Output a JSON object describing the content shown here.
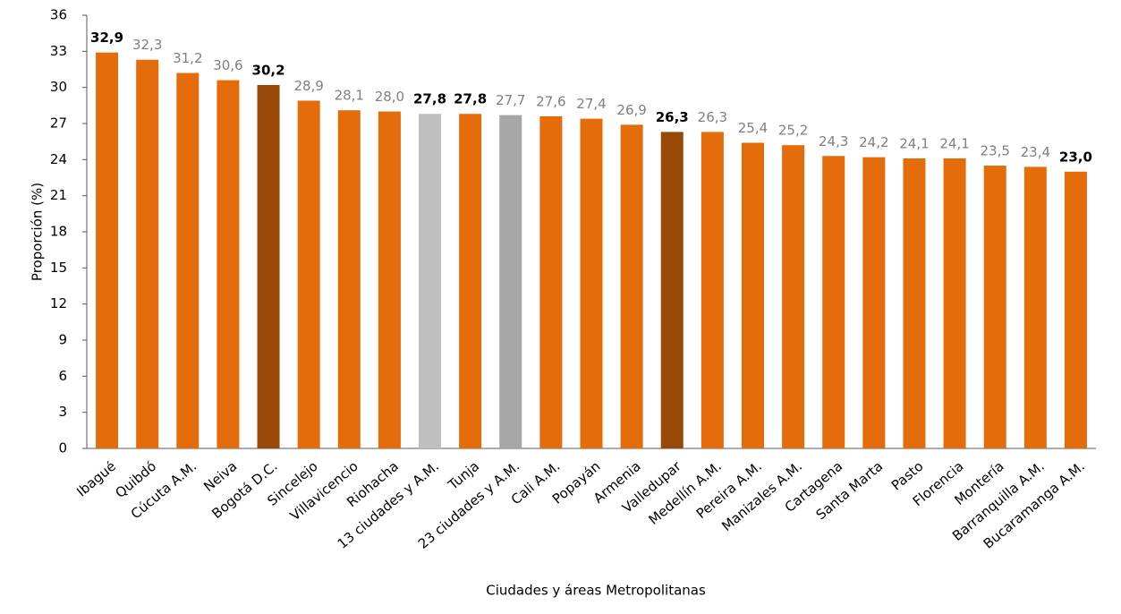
{
  "chart_data": {
    "type": "bar",
    "x_label": "Ciudades y áreas Metropolitanas",
    "y_label": "Proporción (%)",
    "categories": [
      "Ibagué",
      "Quibdó",
      "Cúcuta A.M.",
      "Neiva",
      "Bogotá D.C.",
      "Sincelejo",
      "Villavicencio",
      "Riohacha",
      "13 ciudades y A.M.",
      "Tunja",
      "23 ciudades y A.M.",
      "Cali A.M.",
      "Popayán",
      "Armenia",
      "Valledupar",
      "Medellín A.M.",
      "Pereira A.M.",
      "Manizales A.M.",
      "Cartagena",
      "Santa Marta",
      "Pasto",
      "Florencia",
      "Montería",
      "Barranquilla A.M.",
      "Bucaramanga A.M."
    ],
    "values": [
      32.9,
      32.3,
      31.2,
      30.6,
      30.2,
      28.9,
      28.1,
      28.0,
      27.8,
      27.8,
      27.7,
      27.6,
      27.4,
      26.9,
      26.3,
      26.3,
      25.4,
      25.2,
      24.3,
      24.2,
      24.1,
      24.1,
      23.5,
      23.4,
      23.0
    ],
    "value_labels": [
      "32,9",
      "32,3",
      "31,2",
      "30,6",
      "30,2",
      "28,9",
      "28,1",
      "28,0",
      "27,8",
      "27,8",
      "27,7",
      "27,6",
      "27,4",
      "26,9",
      "26,3",
      "26,3",
      "25,4",
      "25,2",
      "24,3",
      "24,2",
      "24,1",
      "24,1",
      "23,5",
      "23,4",
      "23,0"
    ],
    "colors": [
      "#e46c0a",
      "#e46c0a",
      "#e46c0a",
      "#e46c0a",
      "#984807",
      "#e46c0a",
      "#e46c0a",
      "#e46c0a",
      "#bfbfbf",
      "#e46c0a",
      "#a6a6a6",
      "#e46c0a",
      "#e46c0a",
      "#e46c0a",
      "#984807",
      "#e46c0a",
      "#e46c0a",
      "#e46c0a",
      "#e46c0a",
      "#e46c0a",
      "#e46c0a",
      "#e46c0a",
      "#e46c0a",
      "#e46c0a",
      "#e46c0a"
    ],
    "bold_labels": [
      true,
      false,
      false,
      false,
      true,
      false,
      false,
      false,
      true,
      true,
      false,
      false,
      false,
      false,
      true,
      false,
      false,
      false,
      false,
      false,
      false,
      false,
      false,
      false,
      true
    ],
    "ylim": [
      0,
      36
    ],
    "yticks": [
      0,
      3,
      6,
      9,
      12,
      15,
      18,
      21,
      24,
      27,
      30,
      33,
      36
    ],
    "grid": false
  }
}
